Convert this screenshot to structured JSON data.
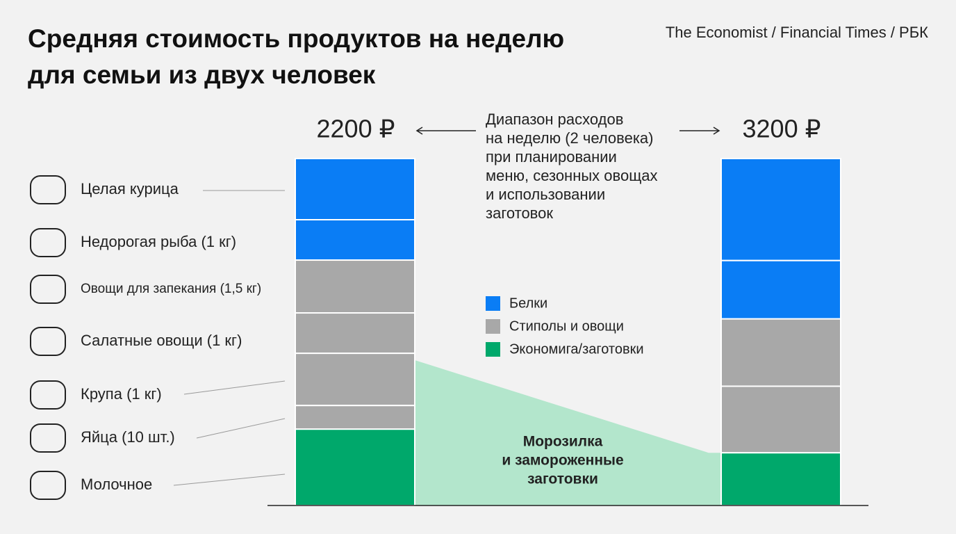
{
  "chart_data": {
    "type": "stacked-bar",
    "title_lines": [
      "Средняя стоимость продуктов на неделю",
      "для семьи из двух человек"
    ],
    "source": "The Economist / Financial Times / РБК",
    "items": [
      "Целая курица",
      "Недорогая рыба (1 кг)",
      "Овощи для запекания (1,5 кг)",
      "Салатные овощи (1 кг)",
      "Крупа (1 кг)",
      "Яйца (10 шт.)",
      "Молочное"
    ],
    "annotation_lines": [
      "Диапазон расходов",
      "на неделю (2 человека)",
      "при планировании",
      "меню, сезонных овощах",
      "и использовании",
      "заготовок"
    ],
    "freezer_label_lines": [
      "Морозилка",
      "и замороженные",
      "заготовки"
    ],
    "legend": [
      {
        "name": "Белки",
        "color": "#0a7df5"
      },
      {
        "name": "Стиполы и овощи",
        "color": "#a8a8a8"
      },
      {
        "name": "Экономига/заготовки",
        "color": "#00a86b"
      }
    ],
    "freezer_color": "#b3e6cc",
    "bars": [
      {
        "total": 2200,
        "total_label": "2200 ₽",
        "values": [
          388,
          256,
          335,
          256,
          331,
          150,
          484
        ],
        "groups": [
          0,
          0,
          1,
          1,
          1,
          1,
          2
        ]
      },
      {
        "total": 3200,
        "total_label": "3200 ₽",
        "values": [
          941,
          538,
          621,
          614,
          486
        ],
        "groups": [
          0,
          0,
          1,
          1,
          2
        ]
      }
    ]
  }
}
